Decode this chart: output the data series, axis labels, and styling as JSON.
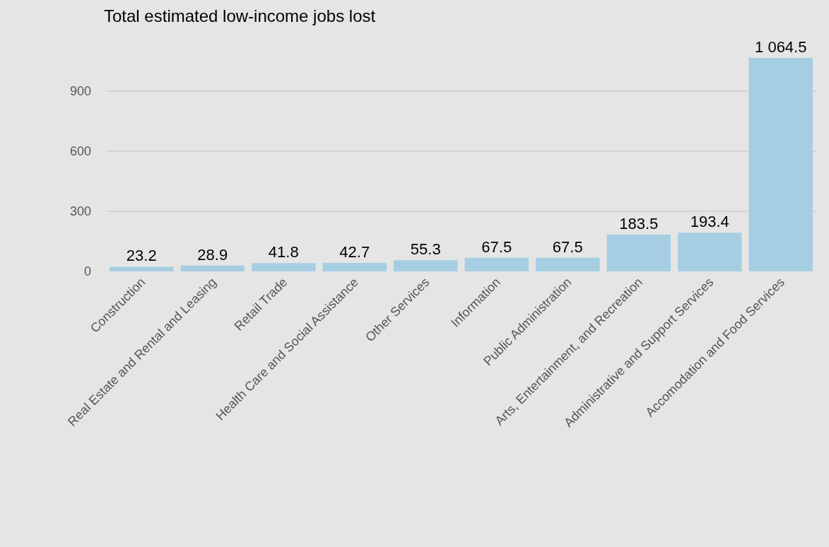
{
  "chart_data": {
    "type": "bar",
    "title": "Total estimated low-income jobs lost",
    "categories": [
      "Construction",
      "Real Estate and Rental and Leasing",
      "Retail Trade",
      "Health Care and Social Assistance",
      "Other Services",
      "Information",
      "Public Administration",
      "Arts, Entertainment, and Recreation",
      "Administrative and Support Services",
      "Accomodation and Food Services"
    ],
    "values": [
      23.2,
      28.9,
      41.8,
      42.7,
      55.3,
      67.5,
      67.5,
      183.5,
      193.4,
      1064.5
    ],
    "value_labels": [
      "23.2",
      "28.9",
      "41.8",
      "42.7",
      "55.3",
      "67.5",
      "67.5",
      "183.5",
      "193.4",
      "1 064.5"
    ],
    "color": "#a6cee3",
    "ylim": [
      0,
      1064.5
    ],
    "yticks": [
      0,
      300,
      600,
      900
    ],
    "grid": "y"
  }
}
